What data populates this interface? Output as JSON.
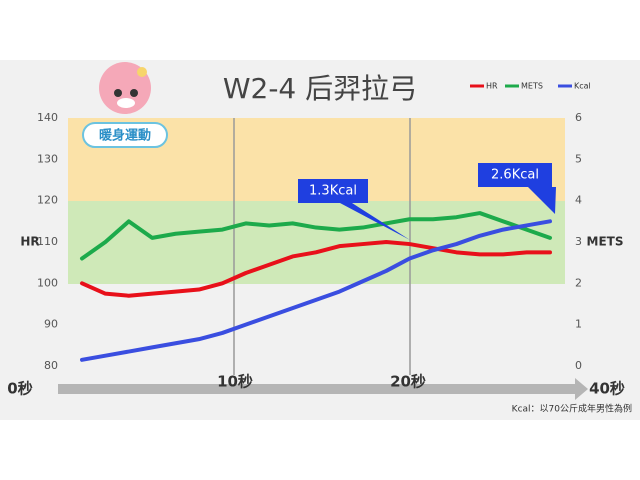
{
  "chart_data": {
    "type": "line",
    "title": "W2-4  后羿拉弓",
    "badge": "暖身運動",
    "ylabel": "HR",
    "y2label": "METS",
    "x_labels": [
      "0秒",
      "10秒",
      "20秒",
      "40秒"
    ],
    "footnote": "Kcal：以70公斤成年男性為例",
    "annotations": [
      "1.3Kcal",
      "2.6Kcal"
    ],
    "legend": "top-right",
    "categories": [
      null,
      null,
      null,
      null,
      null,
      null,
      null,
      null,
      null,
      null,
      null,
      null,
      null,
      null,
      null,
      null,
      null,
      null,
      null,
      null,
      null
    ],
    "series": [
      {
        "name": "HR",
        "color": "#e8101a",
        "values": [
          100,
          97.5,
          97,
          97.5,
          98,
          98.5,
          100,
          102.5,
          104.5,
          106.5,
          107.5,
          109,
          109.5,
          110,
          109.5,
          108.5,
          107.5,
          107,
          107,
          107.5,
          107.5
        ]
      },
      {
        "name": "METS",
        "color": "#1daa4b",
        "axis": "y2",
        "values": [
          2.6,
          3.0,
          3.5,
          3.1,
          3.2,
          3.25,
          3.3,
          3.45,
          3.4,
          3.45,
          3.35,
          3.3,
          3.35,
          3.45,
          3.55,
          3.55,
          3.6,
          3.7,
          3.5,
          3.3,
          3.1
        ]
      },
      {
        "name": "Kcal",
        "color": "#3a4ee0",
        "axis": "y2",
        "values": [
          0.15,
          0.25,
          0.35,
          0.45,
          0.55,
          0.65,
          0.8,
          1.0,
          1.2,
          1.4,
          1.6,
          1.8,
          2.05,
          2.3,
          2.6,
          2.8,
          2.95,
          3.15,
          3.3,
          3.4,
          3.5
        ]
      }
    ],
    "ylim": [
      80,
      140
    ],
    "yticks": [
      80,
      90,
      100,
      110,
      120,
      130,
      140
    ],
    "y2lim": [
      0,
      6
    ],
    "y2ticks": [
      0,
      1,
      2,
      3,
      4,
      5,
      6
    ]
  }
}
